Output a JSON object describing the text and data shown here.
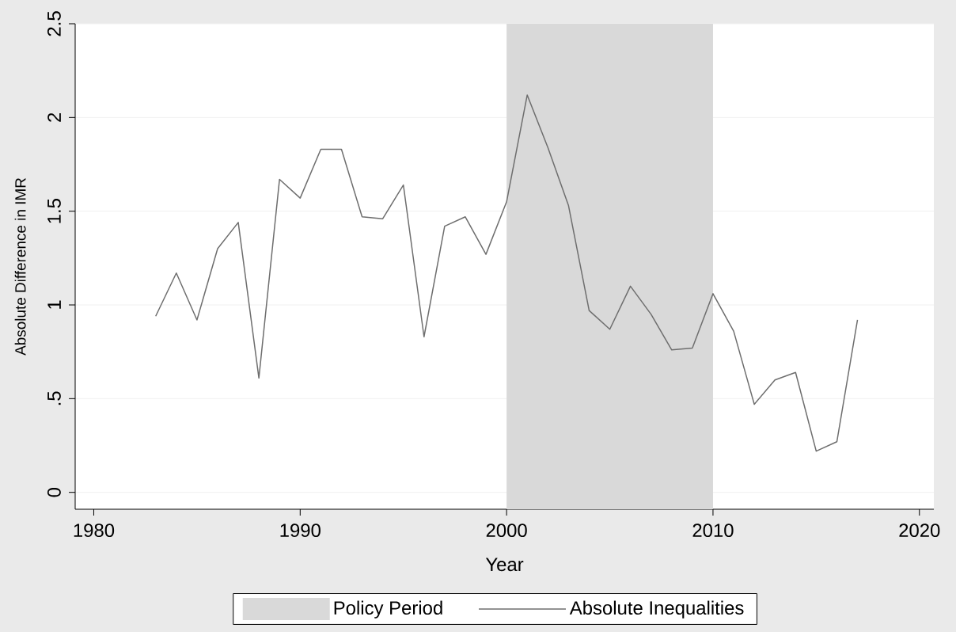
{
  "chart_data": {
    "type": "line",
    "xlabel": "Year",
    "ylabel": "Absolute Difference in IMR",
    "x": [
      1983,
      1984,
      1985,
      1986,
      1987,
      1988,
      1989,
      1990,
      1991,
      1992,
      1993,
      1994,
      1995,
      1996,
      1997,
      1998,
      1999,
      2000,
      2001,
      2002,
      2003,
      2004,
      2005,
      2006,
      2007,
      2008,
      2009,
      2010,
      2011,
      2012,
      2013,
      2014,
      2015,
      2016,
      2017
    ],
    "series": [
      {
        "name": "Absolute Inequalities",
        "color": "#6e6e6e",
        "values": [
          0.94,
          1.17,
          0.92,
          1.3,
          1.44,
          0.61,
          1.67,
          1.57,
          1.83,
          1.83,
          1.47,
          1.46,
          1.64,
          0.83,
          1.42,
          1.47,
          1.27,
          1.55,
          2.12,
          1.84,
          1.53,
          0.97,
          0.87,
          1.1,
          0.95,
          0.76,
          0.77,
          1.06,
          0.86,
          0.47,
          0.6,
          0.64,
          0.22,
          0.27,
          0.92
        ]
      }
    ],
    "bands": [
      {
        "axis": "x",
        "from": 2000,
        "to": 2010,
        "label": "Policy Period",
        "color": "#d9d9d9"
      }
    ],
    "xlim": [
      1979.1,
      2020.7
    ],
    "ylim": [
      -0.09,
      2.5
    ],
    "xticks": [
      1980,
      1990,
      2000,
      2010,
      2020
    ],
    "yticks": [
      0,
      {
        "value": 0.5,
        "label": ".5"
      },
      1,
      1.5,
      2,
      2.5
    ],
    "grid": "y",
    "legend": "bottom",
    "marker": "none",
    "line_style": "solid"
  }
}
